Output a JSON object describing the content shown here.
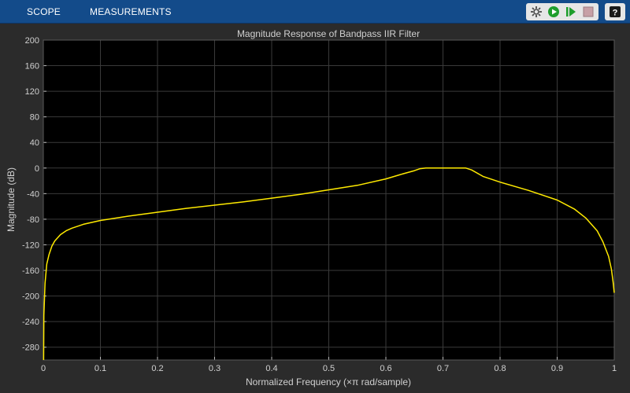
{
  "toolbar": {
    "tabs": [
      {
        "label": "SCOPE"
      },
      {
        "label": "MEASUREMENTS"
      }
    ],
    "icons": [
      "settings-icon",
      "run-icon",
      "step-forward-icon",
      "stop-icon",
      "help-icon"
    ],
    "help_label": "?"
  },
  "colors": {
    "toolbar_bg": "#134b8a",
    "plot_bg": "#000000",
    "frame_bg": "#2b2b2b",
    "trace": "#ffea00",
    "grid": "#3a3a3a",
    "text": "#d0d0d0"
  },
  "chart_data": {
    "type": "line",
    "title": "Magnitude Response of Bandpass IIR Filter",
    "xlabel": "Normalized Frequency (×π rad/sample)",
    "ylabel": "Magnitude (dB)",
    "xlim": [
      0,
      1
    ],
    "ylim": [
      -300,
      200
    ],
    "xticks": [
      0,
      0.1,
      0.2,
      0.3,
      0.4,
      0.5,
      0.6,
      0.7,
      0.8,
      0.9,
      1
    ],
    "xtick_labels": [
      "0",
      "0.1",
      "0.2",
      "0.3",
      "0.4",
      "0.5",
      "0.6",
      "0.7",
      "0.8",
      "0.9",
      "1"
    ],
    "yticks": [
      -280,
      -240,
      -200,
      -160,
      -120,
      -80,
      -40,
      0,
      40,
      80,
      120,
      160,
      200
    ],
    "ytick_labels": [
      "-280",
      "-240",
      "-200",
      "-160",
      "-120",
      "-80",
      "-40",
      "0",
      "40",
      "80",
      "120",
      "160",
      "200"
    ],
    "grid": true,
    "series": [
      {
        "x": [
          0.0005,
          0.001,
          0.003,
          0.006,
          0.01,
          0.015,
          0.02,
          0.03,
          0.04,
          0.05,
          0.07,
          0.1,
          0.15,
          0.2,
          0.25,
          0.3,
          0.35,
          0.4,
          0.45,
          0.5,
          0.55,
          0.6,
          0.63,
          0.65,
          0.66,
          0.67,
          0.68,
          0.7,
          0.72,
          0.73,
          0.74,
          0.75,
          0.77,
          0.8,
          0.85,
          0.9,
          0.93,
          0.95,
          0.97,
          0.98,
          0.99,
          0.995,
          0.998,
          1.0
        ],
        "y": [
          -300,
          -230,
          -180,
          -150,
          -135,
          -122,
          -114,
          -104,
          -98,
          -94,
          -88,
          -82,
          -75,
          -69,
          -63,
          -58,
          -53,
          -47,
          -41,
          -34,
          -27,
          -17,
          -9,
          -4,
          -1,
          0,
          0,
          0,
          0,
          0,
          0,
          -3,
          -13,
          -22,
          -35,
          -50,
          -64,
          -78,
          -98,
          -115,
          -138,
          -158,
          -178,
          -195
        ]
      }
    ]
  }
}
